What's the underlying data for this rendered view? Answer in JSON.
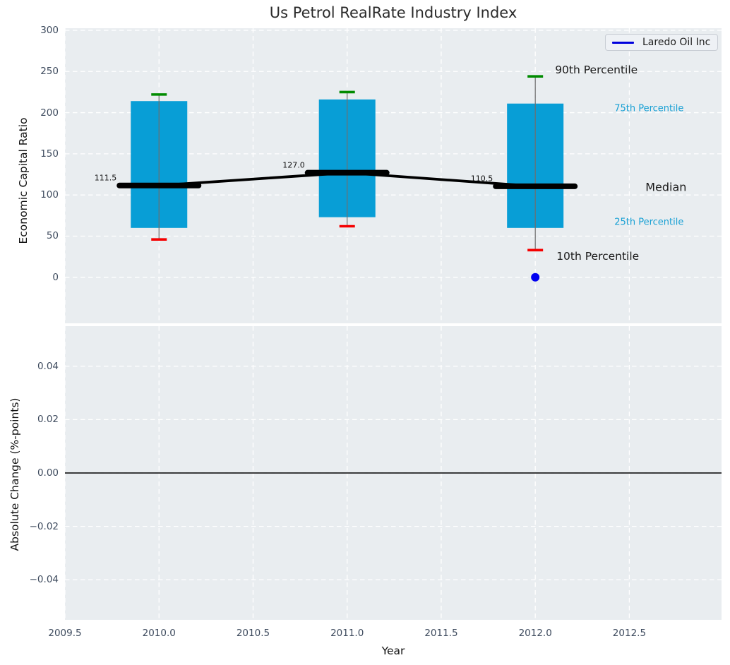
{
  "chart_data": {
    "type": "boxplot-line-combo",
    "title": "Us Petrol RealRate Industry Index",
    "xlabel": "Year",
    "xlim": [
      2009.5,
      2012.99
    ],
    "xticks": [
      2009.5,
      2010,
      2010.5,
      2011,
      2011.5,
      2012,
      2012.5
    ],
    "xtick_labels": [
      "2009.5",
      "2010.0",
      "2010.5",
      "2011.0",
      "2011.5",
      "2012.0",
      "2012.5"
    ],
    "legend": [
      {
        "label": "Laredo Oil Inc",
        "color": "#0000dd"
      }
    ],
    "top_panel": {
      "ylabel": "Economic Capital Ratio",
      "ylim": [
        -55.9,
        302.5
      ],
      "yticks": [
        0,
        50,
        100,
        150,
        200,
        250,
        300
      ],
      "ytick_labels": [
        "0",
        "50",
        "100",
        "150",
        "200",
        "250",
        "300"
      ],
      "grid": true,
      "boxes": [
        {
          "year": 2010,
          "p10": 46,
          "p25": 60,
          "median": 111.5,
          "p75": 214,
          "p90": 222,
          "median_label": "111.5"
        },
        {
          "year": 2011,
          "p10": 62,
          "p25": 73,
          "median": 127.0,
          "p75": 216,
          "p90": 225,
          "median_label": "127.0"
        },
        {
          "year": 2012,
          "p10": 33,
          "p25": 60,
          "median": 110.5,
          "p75": 211,
          "p90": 244,
          "median_label": "110.5"
        }
      ],
      "median_series": [
        {
          "year": 2010,
          "value": 111.5
        },
        {
          "year": 2011,
          "value": 127.0
        },
        {
          "year": 2012,
          "value": 110.5
        }
      ],
      "company_point": {
        "series": "Laredo Oil Inc",
        "year": 2012,
        "value": 0
      },
      "annotations": [
        {
          "text": "90th Percentile",
          "anchor": "p90",
          "color": "#1a1a1a"
        },
        {
          "text": "75th Percentile",
          "anchor": "p75",
          "color": "#18a0d4"
        },
        {
          "text": "Median",
          "anchor": "median",
          "color": "#1a1a1a"
        },
        {
          "text": "25th Percentile",
          "anchor": "p25",
          "color": "#18a0d4"
        },
        {
          "text": "10th Percentile",
          "anchor": "p10",
          "color": "#1a1a1a"
        }
      ]
    },
    "bottom_panel": {
      "ylabel": "Absolute Change (%-points)",
      "ylim": [
        -0.055,
        0.055
      ],
      "yticks": [
        0.04,
        0.02,
        0,
        -0.02,
        -0.04
      ],
      "ytick_labels": [
        "0.04",
        "0.02",
        "0.00",
        "−0.02",
        "−0.04"
      ],
      "grid": true,
      "zero_line": 0
    },
    "colors": {
      "box_fill": "#089ed6",
      "whisker": "#6e6e6e",
      "cap_top": "#008b00",
      "cap_bottom": "#f50000",
      "median": "#000000",
      "company": "#0000f0",
      "panel_bg": "#e9edf0",
      "grid": "#ffffff",
      "tick_label": "#3e4b5e",
      "zero_line_color": "#000000"
    }
  }
}
